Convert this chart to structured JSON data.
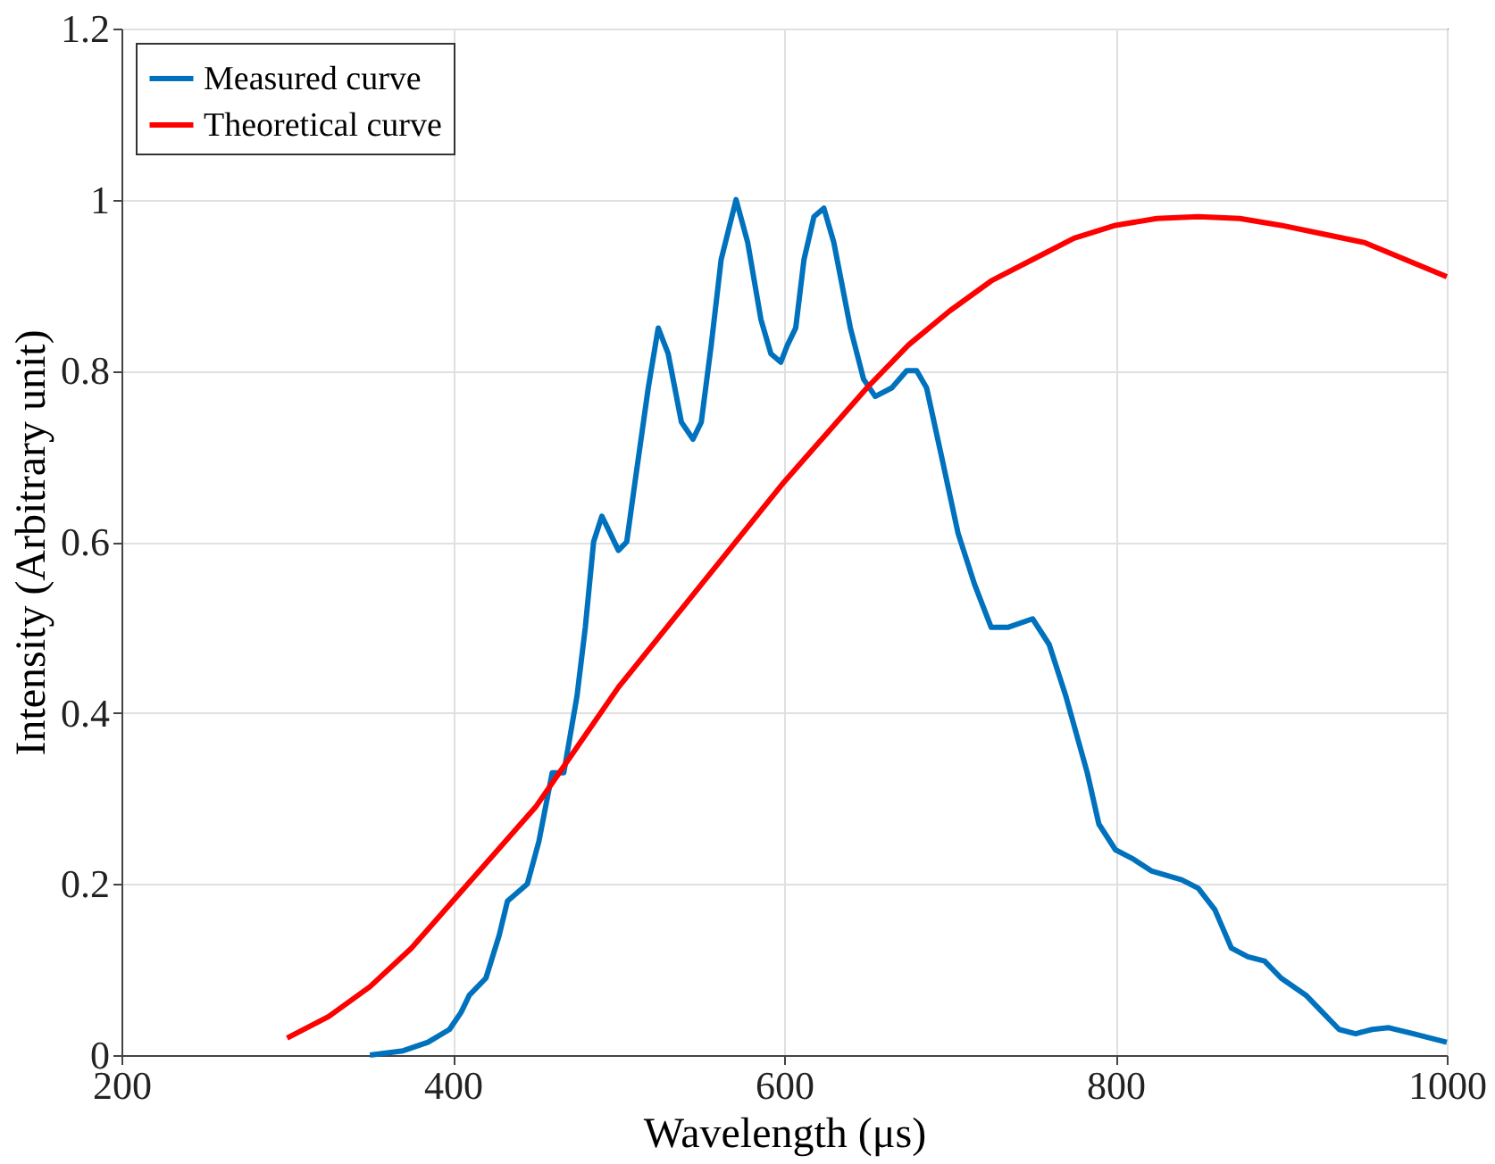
{
  "chart_data": {
    "type": "line",
    "xlabel": "Wavelength (μs)",
    "ylabel": "Intensity (Arbitrary unit)",
    "xlim": [
      200,
      1000
    ],
    "ylim": [
      0,
      1.2
    ],
    "xticks": [
      200,
      400,
      600,
      800,
      1000
    ],
    "yticks": [
      0,
      0.2,
      0.4,
      0.6,
      0.8,
      1,
      1.2
    ],
    "grid": true,
    "legend": "top left",
    "line_style": "solid",
    "marker": "none",
    "series": [
      {
        "name": "Measured curve",
        "color": "#0072bd",
        "x": [
          350,
          370,
          385,
          398,
          405,
          410,
          420,
          428,
          433,
          445,
          452,
          460,
          467,
          475,
          480,
          485,
          490,
          495,
          500,
          505,
          510,
          518,
          524,
          530,
          538,
          545,
          550,
          556,
          562,
          571,
          578,
          586,
          592,
          598,
          602,
          607,
          612,
          618,
          624,
          630,
          640,
          648,
          655,
          665,
          674,
          680,
          686,
          695,
          705,
          715,
          725,
          735,
          750,
          760,
          770,
          783,
          790,
          800,
          810,
          822,
          840,
          850,
          860,
          870,
          880,
          890,
          900,
          915,
          925,
          935,
          945,
          955,
          965,
          980,
          1000
        ],
        "values": [
          0.0,
          0.005,
          0.015,
          0.03,
          0.05,
          0.07,
          0.09,
          0.14,
          0.18,
          0.2,
          0.25,
          0.33,
          0.33,
          0.42,
          0.5,
          0.6,
          0.63,
          0.61,
          0.59,
          0.6,
          0.67,
          0.78,
          0.85,
          0.82,
          0.74,
          0.72,
          0.74,
          0.83,
          0.93,
          1.0,
          0.95,
          0.86,
          0.82,
          0.81,
          0.83,
          0.85,
          0.93,
          0.98,
          0.99,
          0.95,
          0.85,
          0.79,
          0.77,
          0.78,
          0.8,
          0.8,
          0.78,
          0.7,
          0.61,
          0.55,
          0.5,
          0.5,
          0.51,
          0.48,
          0.42,
          0.33,
          0.27,
          0.24,
          0.23,
          0.215,
          0.205,
          0.195,
          0.17,
          0.125,
          0.115,
          0.11,
          0.09,
          0.07,
          0.05,
          0.03,
          0.025,
          0.03,
          0.032,
          0.025,
          0.015
        ]
      },
      {
        "name": "Theoretical curve",
        "color": "#ff0000",
        "x": [
          300,
          325,
          350,
          375,
          400,
          425,
          450,
          475,
          500,
          525,
          550,
          575,
          600,
          625,
          650,
          675,
          700,
          725,
          750,
          775,
          800,
          825,
          850,
          875,
          900,
          925,
          950,
          975,
          1000
        ],
        "values": [
          0.02,
          0.045,
          0.08,
          0.125,
          0.18,
          0.235,
          0.29,
          0.36,
          0.43,
          0.49,
          0.55,
          0.61,
          0.67,
          0.725,
          0.78,
          0.83,
          0.87,
          0.905,
          0.93,
          0.955,
          0.97,
          0.978,
          0.98,
          0.978,
          0.97,
          0.96,
          0.95,
          0.93,
          0.91
        ]
      }
    ]
  }
}
